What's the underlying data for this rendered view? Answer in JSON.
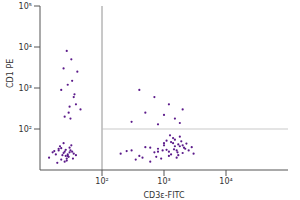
{
  "chart_data": {
    "type": "scatter",
    "x_label": "CD3ε-FITC",
    "y_label": "CD1 PE",
    "log": true,
    "color": "#5b1a8a",
    "marker": "dot",
    "xlim": [
      10,
      100000
    ],
    "xticks": [
      {
        "value": 100,
        "label": "10²"
      },
      {
        "value": 1000,
        "label": "10³"
      },
      {
        "value": 10000,
        "label": "10⁴"
      }
    ],
    "ylim": [
      10,
      100000
    ],
    "yticks": [
      {
        "value": 100,
        "label": "10²"
      },
      {
        "value": 1000,
        "label": "10³"
      },
      {
        "value": 10000,
        "label": "10⁴"
      },
      {
        "value": 100000,
        "label": "10⁵"
      }
    ],
    "gates": {
      "x": 100,
      "y": 100
    },
    "x": [
      14,
      18,
      22,
      25,
      28,
      31,
      35,
      20,
      24,
      27,
      30,
      16,
      19,
      23,
      26,
      29,
      33,
      21,
      25,
      28,
      17,
      22,
      26,
      30,
      34,
      24,
      27,
      20,
      32,
      38,
      200,
      300,
      450,
      600,
      800,
      1000,
      1200,
      1400,
      1600,
      1800,
      2000,
      2200,
      1500,
      1300,
      1100,
      900,
      700,
      500,
      350,
      250,
      1700,
      1900,
      2100,
      1600,
      1400,
      1200,
      1000,
      800,
      2500,
      3000,
      1800,
      1500,
      1300,
      1700,
      2000,
      600,
      400,
      1100,
      2300,
      1450,
      1650,
      950,
      750,
      2800,
      1250,
      25,
      30,
      35,
      28,
      40,
      32,
      22,
      38,
      27,
      45,
      33,
      29,
      36,
      24,
      31,
      300,
      500,
      800,
      1200,
      1500,
      2000,
      700,
      1000,
      400,
      1800
    ],
    "values": [
      20,
      24,
      18,
      28,
      22,
      30,
      25,
      33,
      26,
      19,
      35,
      27,
      15,
      23,
      31,
      21,
      28,
      38,
      16,
      24,
      29,
      34,
      22,
      27,
      19,
      45,
      17,
      30,
      40,
      23,
      25,
      30,
      20,
      35,
      28,
      40,
      22,
      45,
      30,
      38,
      26,
      33,
      55,
      24,
      31,
      19,
      27,
      36,
      18,
      29,
      42,
      50,
      35,
      20,
      60,
      28,
      45,
      33,
      30,
      25,
      65,
      38,
      48,
      23,
      40,
      16,
      22,
      52,
      44,
      32,
      27,
      30,
      21,
      36,
      70,
      200,
      350,
      600,
      1200,
      2500,
      5000,
      900,
      400,
      8000,
      300,
      1500,
      250,
      700,
      3000,
      180,
      150,
      250,
      130,
      400,
      180,
      300,
      600,
      220,
      900,
      140
    ]
  }
}
